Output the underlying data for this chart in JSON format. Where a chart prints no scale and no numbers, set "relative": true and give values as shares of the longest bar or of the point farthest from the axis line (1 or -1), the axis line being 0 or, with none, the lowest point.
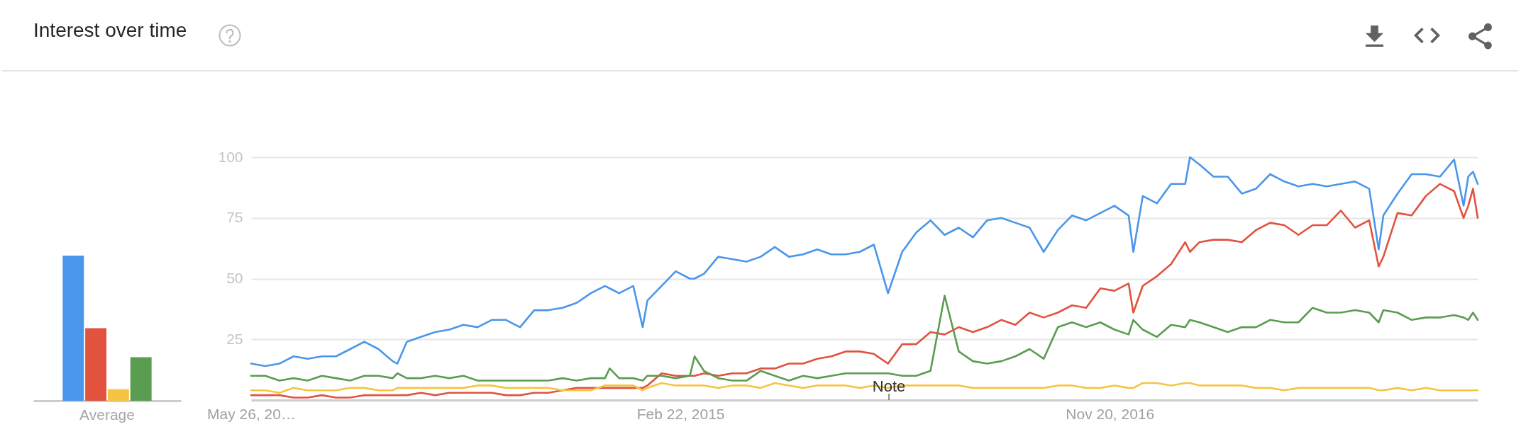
{
  "chart_data": [
    {
      "type": "bar",
      "title": "Interest over time",
      "categories": [
        "Average"
      ],
      "relative": true,
      "series": [
        {
          "color": "#4a96ea",
          "values": [
            1
          ]
        },
        {
          "color": "#e1523f",
          "values": [
            0.5
          ]
        },
        {
          "color": "#f5c542",
          "values": [
            0.08
          ]
        },
        {
          "color": "#5a9c50",
          "values": [
            0.3
          ]
        }
      ]
    },
    {
      "type": "line",
      "x": [
        "2013-05-26",
        "2013-06-16",
        "2013-07-07",
        "2013-07-28",
        "2013-08-18",
        "2013-09-08",
        "2013-09-29",
        "2013-10-20",
        "2013-11-10",
        "2013-12-01",
        "2013-12-22",
        "2013-12-29",
        "2014-01-12",
        "2014-02-02",
        "2014-02-23",
        "2014-03-16",
        "2014-04-06",
        "2014-04-27",
        "2014-05-18",
        "2014-06-08",
        "2014-06-29",
        "2014-07-20",
        "2014-08-10",
        "2014-08-31",
        "2014-09-21",
        "2014-10-12",
        "2014-11-02",
        "2014-11-09",
        "2014-11-23",
        "2014-12-14",
        "2014-12-28",
        "2015-01-04",
        "2015-01-25",
        "2015-02-15",
        "2015-03-08",
        "2015-03-15",
        "2015-03-29",
        "2015-04-19",
        "2015-05-10",
        "2015-05-31",
        "2015-06-21",
        "2015-07-12",
        "2015-08-02",
        "2015-08-23",
        "2015-09-13",
        "2015-10-04",
        "2015-10-25",
        "2015-11-15",
        "2015-12-06",
        "2015-12-27",
        "2016-01-17",
        "2016-02-07",
        "2016-02-28",
        "2016-03-20",
        "2016-04-10",
        "2016-05-01",
        "2016-05-22",
        "2016-06-12",
        "2016-07-03",
        "2016-07-24",
        "2016-08-14",
        "2016-09-04",
        "2016-09-25",
        "2016-10-16",
        "2016-11-06",
        "2016-11-27",
        "2016-12-18",
        "2016-12-25",
        "2017-01-08",
        "2017-01-29",
        "2017-02-19",
        "2017-03-12",
        "2017-03-19",
        "2017-04-02",
        "2017-04-23",
        "2017-05-14",
        "2017-06-04",
        "2017-06-25",
        "2017-07-16",
        "2017-08-06",
        "2017-08-27",
        "2017-09-17",
        "2017-10-08",
        "2017-10-29",
        "2017-11-19",
        "2017-12-10",
        "2017-12-24",
        "2017-12-31",
        "2018-01-21",
        "2018-02-11",
        "2018-03-04",
        "2018-03-25",
        "2018-04-15",
        "2018-04-29",
        "2018-05-06",
        "2018-05-13",
        "2018-05-20"
      ],
      "series": [
        {
          "color": "#4a96ea",
          "values": [
            15,
            14,
            15,
            18,
            17,
            18,
            18,
            21,
            24,
            21,
            16,
            15,
            24,
            26,
            28,
            29,
            31,
            30,
            33,
            33,
            30,
            37,
            37,
            38,
            40,
            44,
            47,
            46,
            44,
            47,
            30,
            41,
            47,
            53,
            50,
            50,
            52,
            59,
            58,
            57,
            59,
            63,
            59,
            60,
            62,
            60,
            60,
            61,
            64,
            44,
            61,
            69,
            74,
            68,
            71,
            67,
            74,
            75,
            73,
            71,
            61,
            70,
            76,
            74,
            77,
            80,
            76,
            61,
            84,
            81,
            89,
            89,
            100,
            97,
            92,
            92,
            85,
            87,
            93,
            90,
            88,
            89,
            88,
            89,
            90,
            87,
            62,
            76,
            85,
            93,
            93,
            92,
            99,
            80,
            92,
            94,
            89
          ]
        },
        {
          "color": "#e1523f",
          "values": [
            2,
            2,
            2,
            1,
            1,
            2,
            1,
            1,
            2,
            2,
            2,
            2,
            2,
            3,
            2,
            3,
            3,
            3,
            3,
            2,
            2,
            3,
            3,
            4,
            5,
            5,
            5,
            5,
            5,
            5,
            5,
            6,
            11,
            10,
            10,
            10,
            11,
            10,
            11,
            11,
            13,
            13,
            15,
            15,
            17,
            18,
            20,
            20,
            19,
            15,
            23,
            23,
            28,
            27,
            30,
            28,
            30,
            33,
            31,
            36,
            34,
            36,
            39,
            38,
            46,
            45,
            48,
            36,
            47,
            51,
            56,
            65,
            61,
            65,
            66,
            66,
            65,
            70,
            73,
            72,
            68,
            72,
            72,
            78,
            71,
            74,
            55,
            59,
            77,
            76,
            84,
            89,
            86,
            75,
            80,
            87,
            75
          ]
        },
        {
          "color": "#f5c542",
          "values": [
            4,
            4,
            3,
            5,
            4,
            4,
            4,
            5,
            5,
            4,
            4,
            5,
            5,
            5,
            5,
            5,
            5,
            6,
            6,
            5,
            5,
            5,
            5,
            4,
            4,
            4,
            6,
            6,
            6,
            6,
            4,
            5,
            7,
            6,
            6,
            6,
            6,
            5,
            6,
            6,
            5,
            7,
            6,
            5,
            6,
            6,
            6,
            5,
            6,
            5,
            6,
            6,
            6,
            6,
            6,
            5,
            5,
            5,
            5,
            5,
            5,
            6,
            6,
            5,
            5,
            6,
            5,
            5,
            7,
            7,
            6,
            7,
            7,
            6,
            6,
            6,
            6,
            5,
            5,
            4,
            5,
            5,
            5,
            5,
            5,
            5,
            4,
            4,
            5,
            4,
            5,
            4,
            4,
            4,
            4,
            4,
            4
          ]
        },
        {
          "color": "#5a9c50",
          "values": [
            10,
            10,
            8,
            9,
            8,
            10,
            9,
            8,
            10,
            10,
            9,
            11,
            9,
            9,
            10,
            9,
            10,
            8,
            8,
            8,
            8,
            8,
            8,
            9,
            8,
            9,
            9,
            13,
            9,
            9,
            8,
            10,
            10,
            9,
            10,
            18,
            12,
            9,
            8,
            8,
            12,
            10,
            8,
            10,
            9,
            10,
            11,
            11,
            11,
            11,
            10,
            10,
            12,
            43,
            20,
            16,
            15,
            16,
            18,
            21,
            17,
            30,
            32,
            30,
            32,
            29,
            27,
            33,
            29,
            26,
            31,
            30,
            33,
            32,
            30,
            28,
            30,
            30,
            33,
            32,
            32,
            38,
            36,
            36,
            37,
            36,
            32,
            37,
            36,
            33,
            34,
            34,
            35,
            34,
            33,
            36,
            33
          ]
        }
      ],
      "xlim": [
        "2013-05-26",
        "2018-05-20"
      ],
      "ylim": [
        0,
        100
      ],
      "xticks": [
        {
          "value": "2013-05-26",
          "label": "May 26, 20…"
        },
        {
          "value": "2015-02-22",
          "label": "Feb 22, 2015"
        },
        {
          "value": "2016-11-20",
          "label": "Nov 20, 2016"
        }
      ],
      "yticks": [
        25,
        50,
        75,
        100
      ],
      "grid": "y",
      "annotations": [
        "Note"
      ]
    }
  ]
}
